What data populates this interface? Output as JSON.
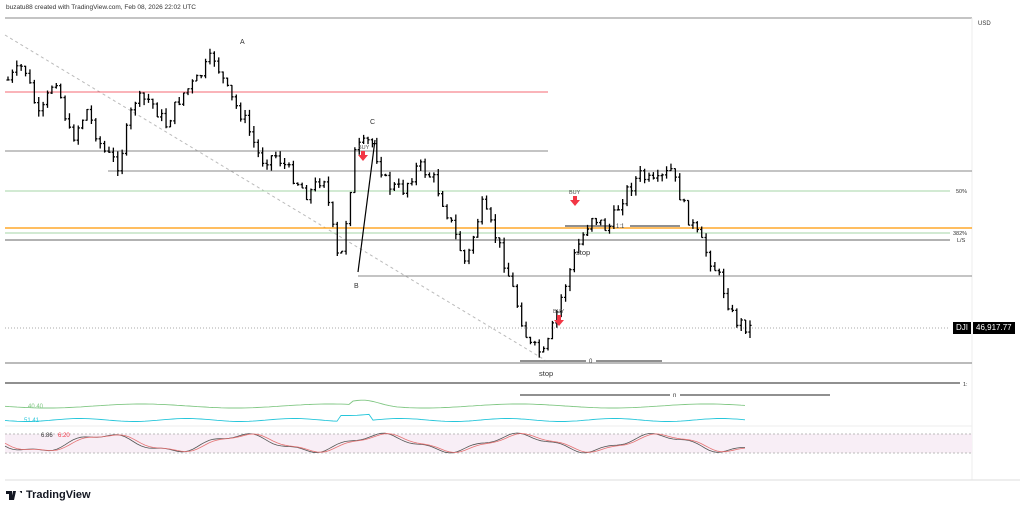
{
  "header": {
    "credit": "buzatu88 created with TradingView.com, Feb 08, 2026 22:02 UTC"
  },
  "axis": {
    "currency": "USD"
  },
  "price_tag": {
    "symbol": "DJI",
    "price": "46,917.77"
  },
  "labels": {
    "A": "A",
    "B": "B",
    "C": "C",
    "buy": "BUY",
    "stop": "stop",
    "ratio_1_1": "1:1",
    "zero": "0",
    "n": "n",
    "fib50": "50%",
    "fib382": "382%",
    "ls": "L/S",
    "one": "1:"
  },
  "indicators": {
    "line1_value": "40.40",
    "line2_value": "51.41",
    "stoch_k": "6.86",
    "stoch_d": "6.20"
  },
  "colors": {
    "bars": "#000000",
    "red_line": "#f23645",
    "fib_green": "#a5d6a7",
    "orange": "#ff9800",
    "ind1": "#81c784",
    "ind2": "#26c6da",
    "stoch_k": "#555555",
    "stoch_d": "#e57373",
    "stoch_band": "#f3e5f5",
    "arrow": "#f23645"
  },
  "brand": "TradingView",
  "chart_data": {
    "type": "ohlc",
    "symbol": "DJI",
    "last_price": 46917.77,
    "approx_close_path": [
      49398,
      49548,
      48998,
      49448,
      48798,
      49098,
      48698,
      48548,
      49198,
      49198,
      48948,
      49248,
      49398,
      49648,
      49248,
      48998,
      48598,
      48648,
      48448,
      48248,
      48448,
      47498,
      48698,
      48798,
      48348,
      48298,
      48548,
      48398,
      47998,
      47548,
      48148,
      47798,
      47298,
      46748,
      46648,
      47198,
      47698,
      48048,
      47898,
      48248,
      48448,
      48348,
      48498,
      48048,
      47748,
      47448,
      46998,
      46918
    ]
  }
}
